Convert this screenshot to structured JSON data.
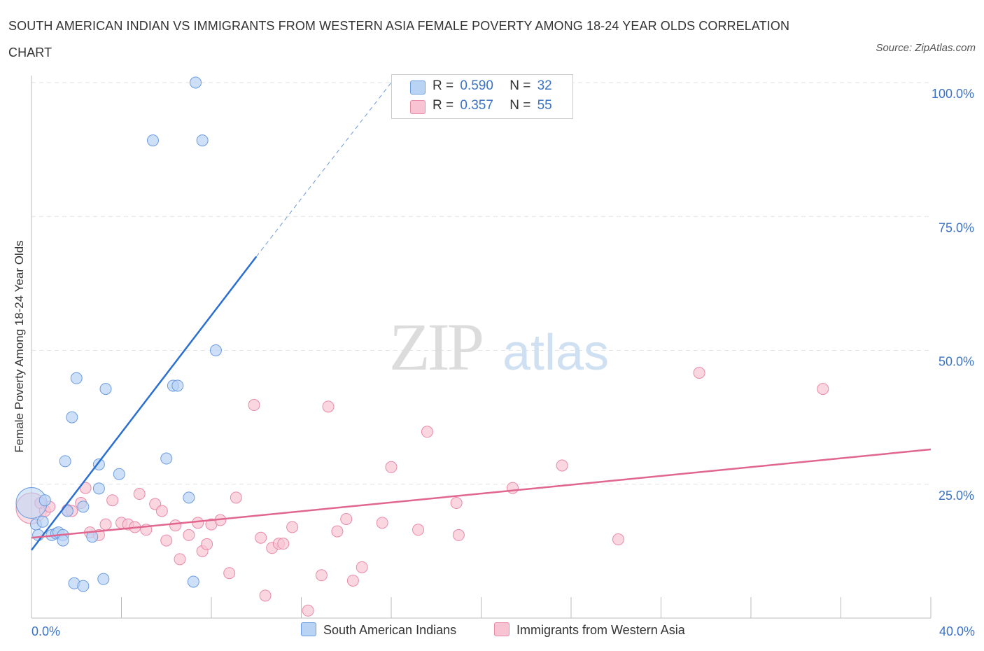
{
  "title": "SOUTH AMERICAN INDIAN VS IMMIGRANTS FROM WESTERN ASIA FEMALE POVERTY AMONG 18-24 YEAR OLDS CORRELATION CHART",
  "source": "Source: ZipAtlas.com",
  "watermark": {
    "zip": "ZIP",
    "atlas": "atlas"
  },
  "legend": {
    "r_label": "R =",
    "n_label": "N =",
    "series1": {
      "r": "0.590",
      "n": "32"
    },
    "series2": {
      "r": "0.357",
      "n": "55"
    }
  },
  "colors": {
    "series1_fill": "#b9d3f5",
    "series1_stroke": "#6b9be0",
    "series1_line": "#2b6fd1",
    "series2_fill": "#f8c4d3",
    "series2_stroke": "#e88aa8",
    "series2_line": "#e0668f",
    "tick_label": "#3a72c4",
    "grid": "#e2e2e2"
  },
  "chart_data": {
    "type": "scatter",
    "title": "SOUTH AMERICAN INDIAN VS IMMIGRANTS FROM WESTERN ASIA FEMALE POVERTY AMONG 18-24 YEAR OLDS CORRELATION CHART",
    "xlabel": "",
    "ylabel": "Female Poverty Among 18-24 Year Olds",
    "xlim": [
      0,
      40
    ],
    "ylim": [
      0,
      100
    ],
    "x_tick_labels": [
      "0.0%",
      "40.0%"
    ],
    "y_ticks": [
      25,
      50,
      75,
      100
    ],
    "y_tick_labels": [
      "25.0%",
      "50.0%",
      "75.0%",
      "100.0%"
    ],
    "grid": true,
    "legend_position": "top-center",
    "series": [
      {
        "name": "South American Indians",
        "r": 0.59,
        "n": 32,
        "trend": {
          "x": [
            0,
            10
          ],
          "y": [
            12.7,
            67.5
          ],
          "dashed_to": [
            16,
            100
          ]
        },
        "points": [
          {
            "x": 0.0,
            "y": 21.5,
            "big": true
          },
          {
            "x": 0.2,
            "y": 17.5
          },
          {
            "x": 0.3,
            "y": 15.5
          },
          {
            "x": 0.5,
            "y": 18.0
          },
          {
            "x": 0.6,
            "y": 22.0
          },
          {
            "x": 0.9,
            "y": 15.5
          },
          {
            "x": 1.1,
            "y": 15.8
          },
          {
            "x": 1.2,
            "y": 16.0
          },
          {
            "x": 1.4,
            "y": 15.5
          },
          {
            "x": 1.4,
            "y": 14.5
          },
          {
            "x": 1.5,
            "y": 29.3
          },
          {
            "x": 1.6,
            "y": 20.0
          },
          {
            "x": 1.8,
            "y": 37.5
          },
          {
            "x": 1.9,
            "y": 6.5
          },
          {
            "x": 2.0,
            "y": 44.8
          },
          {
            "x": 2.3,
            "y": 6.0
          },
          {
            "x": 2.3,
            "y": 20.8
          },
          {
            "x": 2.7,
            "y": 15.2
          },
          {
            "x": 3.0,
            "y": 24.2
          },
          {
            "x": 3.0,
            "y": 28.7
          },
          {
            "x": 3.2,
            "y": 7.3
          },
          {
            "x": 3.3,
            "y": 42.8
          },
          {
            "x": 3.9,
            "y": 26.9
          },
          {
            "x": 5.4,
            "y": 89.2
          },
          {
            "x": 6.0,
            "y": 29.8
          },
          {
            "x": 6.3,
            "y": 43.4
          },
          {
            "x": 6.5,
            "y": 43.4
          },
          {
            "x": 7.0,
            "y": 22.5
          },
          {
            "x": 7.2,
            "y": 6.8
          },
          {
            "x": 7.3,
            "y": 100.0
          },
          {
            "x": 7.6,
            "y": 89.2
          },
          {
            "x": 8.2,
            "y": 50.0
          }
        ]
      },
      {
        "name": "Immigrants from Western Asia",
        "r": 0.357,
        "n": 55,
        "trend": {
          "x": [
            0,
            40
          ],
          "y": [
            15.0,
            31.5
          ]
        },
        "points": [
          {
            "x": 0.0,
            "y": 20.5,
            "big": true
          },
          {
            "x": 0.4,
            "y": 21.5
          },
          {
            "x": 0.6,
            "y": 20.0
          },
          {
            "x": 0.8,
            "y": 20.8
          },
          {
            "x": 1.6,
            "y": 20.2
          },
          {
            "x": 1.8,
            "y": 20.0
          },
          {
            "x": 2.2,
            "y": 21.5
          },
          {
            "x": 2.4,
            "y": 24.3
          },
          {
            "x": 2.6,
            "y": 16.0
          },
          {
            "x": 3.0,
            "y": 15.5
          },
          {
            "x": 3.3,
            "y": 17.5
          },
          {
            "x": 3.6,
            "y": 22.0
          },
          {
            "x": 4.0,
            "y": 17.8
          },
          {
            "x": 4.3,
            "y": 17.5
          },
          {
            "x": 4.6,
            "y": 17.0
          },
          {
            "x": 4.8,
            "y": 23.2
          },
          {
            "x": 5.1,
            "y": 16.5
          },
          {
            "x": 5.5,
            "y": 21.3
          },
          {
            "x": 5.8,
            "y": 20.0
          },
          {
            "x": 6.0,
            "y": 14.5
          },
          {
            "x": 6.4,
            "y": 17.3
          },
          {
            "x": 6.6,
            "y": 11.0
          },
          {
            "x": 7.0,
            "y": 15.5
          },
          {
            "x": 7.4,
            "y": 17.8
          },
          {
            "x": 7.6,
            "y": 12.5
          },
          {
            "x": 7.8,
            "y": 13.8
          },
          {
            "x": 8.0,
            "y": 17.5
          },
          {
            "x": 8.4,
            "y": 18.3
          },
          {
            "x": 8.8,
            "y": 8.4
          },
          {
            "x": 9.1,
            "y": 22.5
          },
          {
            "x": 9.9,
            "y": 39.8
          },
          {
            "x": 10.2,
            "y": 15.0
          },
          {
            "x": 10.4,
            "y": 4.2
          },
          {
            "x": 10.7,
            "y": 13.1
          },
          {
            "x": 11.0,
            "y": 13.9
          },
          {
            "x": 11.2,
            "y": 13.9
          },
          {
            "x": 11.6,
            "y": 17.0
          },
          {
            "x": 12.3,
            "y": 1.4
          },
          {
            "x": 12.9,
            "y": 8.0
          },
          {
            "x": 13.2,
            "y": 39.5
          },
          {
            "x": 13.6,
            "y": 16.2
          },
          {
            "x": 14.0,
            "y": 18.5
          },
          {
            "x": 14.3,
            "y": 7.0
          },
          {
            "x": 14.7,
            "y": 9.5
          },
          {
            "x": 15.6,
            "y": 17.8
          },
          {
            "x": 16.0,
            "y": 28.2
          },
          {
            "x": 17.2,
            "y": 16.5
          },
          {
            "x": 17.6,
            "y": 34.8
          },
          {
            "x": 18.9,
            "y": 21.5
          },
          {
            "x": 19.0,
            "y": 15.5
          },
          {
            "x": 21.4,
            "y": 24.3
          },
          {
            "x": 23.6,
            "y": 28.5
          },
          {
            "x": 26.1,
            "y": 14.7
          },
          {
            "x": 29.7,
            "y": 45.8
          },
          {
            "x": 35.2,
            "y": 42.8
          }
        ]
      }
    ]
  }
}
